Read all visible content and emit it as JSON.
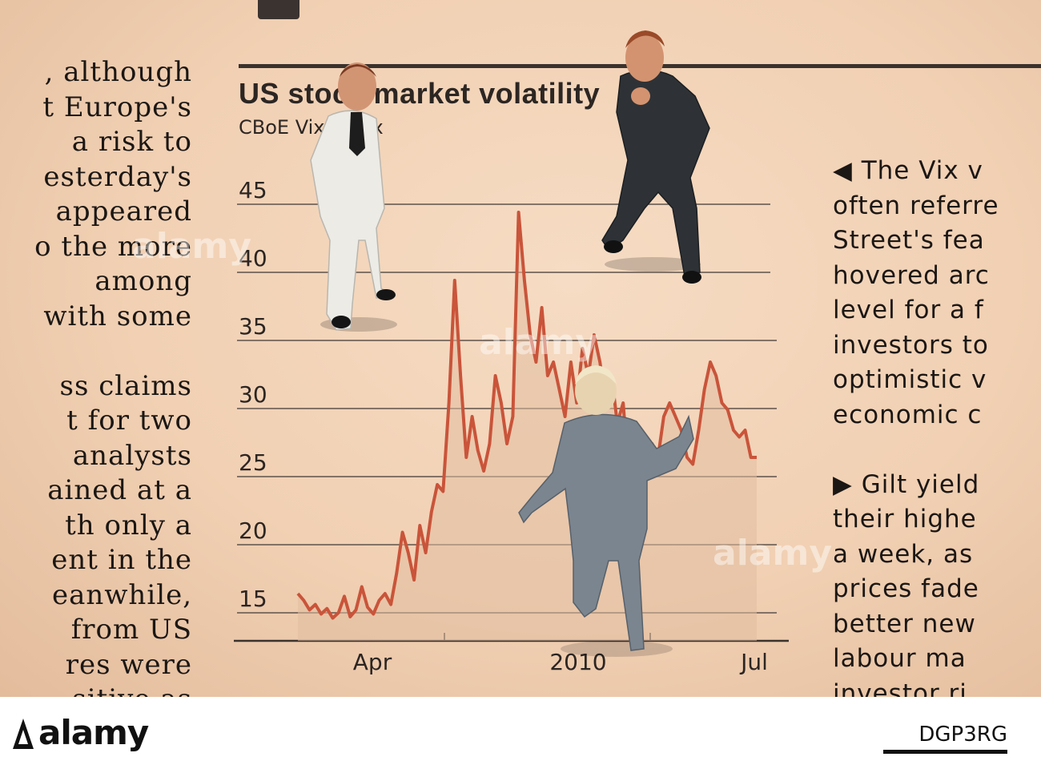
{
  "article": {
    "headline": "US stock market volatility",
    "subhead": "CBoE Vix index",
    "left_column": [
      ", although",
      "t Europe's",
      "a risk to",
      "esterday's",
      "appeared",
      "o the more",
      "among",
      "with some",
      "",
      "ss claims",
      "t for two",
      "analysts",
      "ained at a",
      "th only a",
      "ent in the",
      "eanwhile,",
      "from US",
      "res were",
      "sitive as"
    ],
    "right_column": [
      "◀ The Vix v",
      "often referre",
      "Street's fea",
      "hovered arc",
      "level for a f",
      "investors to",
      "optimistic v",
      "economic c",
      "",
      "▶ Gilt yield",
      "their highe",
      "a week, as",
      "prices fade",
      "better new",
      "labour ma",
      "investor ri"
    ]
  },
  "chart_data": {
    "type": "area",
    "title": "US stock market volatility",
    "subtitle": "CBoE Vix index",
    "x_ticks": [
      "Apr",
      "2010",
      "Jul"
    ],
    "y_ticks": [
      15,
      20,
      25,
      30,
      35,
      40,
      45
    ],
    "ylim": [
      14,
      46
    ],
    "grid": true,
    "series": [
      {
        "color": "#c9543a",
        "x": [
          0,
          1,
          2,
          3,
          4,
          5,
          6,
          7,
          8,
          9,
          10,
          11,
          12,
          13,
          14,
          15,
          16,
          17,
          18,
          19,
          20,
          21,
          22,
          23,
          24,
          25,
          26,
          27,
          28,
          29,
          30,
          31,
          32,
          33,
          34,
          35,
          36,
          37,
          38,
          39,
          40,
          41,
          42,
          43,
          44,
          45,
          46,
          47,
          48,
          49,
          50,
          51,
          52,
          53,
          54,
          55,
          56,
          57,
          58,
          59,
          60,
          61,
          62,
          63,
          64,
          65,
          66,
          67,
          68,
          69,
          70,
          71,
          72,
          73,
          74,
          75,
          76,
          77,
          78,
          79
        ],
        "values": [
          17,
          16.5,
          15.8,
          16.2,
          15.5,
          15.9,
          15.2,
          15.6,
          16.8,
          15.3,
          15.8,
          17.5,
          16,
          15.5,
          16.5,
          17,
          16.2,
          18.5,
          21.5,
          20,
          18,
          22,
          20,
          23,
          25,
          24.5,
          31,
          40,
          33,
          27,
          30,
          27.5,
          26,
          28,
          33,
          31,
          28,
          30,
          45,
          40,
          36,
          34,
          38,
          33,
          34,
          32,
          30,
          34,
          31,
          35,
          33,
          36,
          34,
          31,
          33,
          29.5,
          31,
          25.5,
          27,
          24.5,
          26,
          28,
          27,
          30,
          31,
          30,
          29,
          27,
          26.5,
          29,
          32,
          34,
          33,
          31,
          30.5,
          29,
          28.5,
          29,
          27,
          27
        ]
      }
    ]
  },
  "watermark": "alamy",
  "footer": {
    "brand": "alamy",
    "image_id": "DGP3RG"
  },
  "colors": {
    "paper": "#f1d0b3",
    "line": "#c9543a",
    "ink": "#2b2522"
  }
}
